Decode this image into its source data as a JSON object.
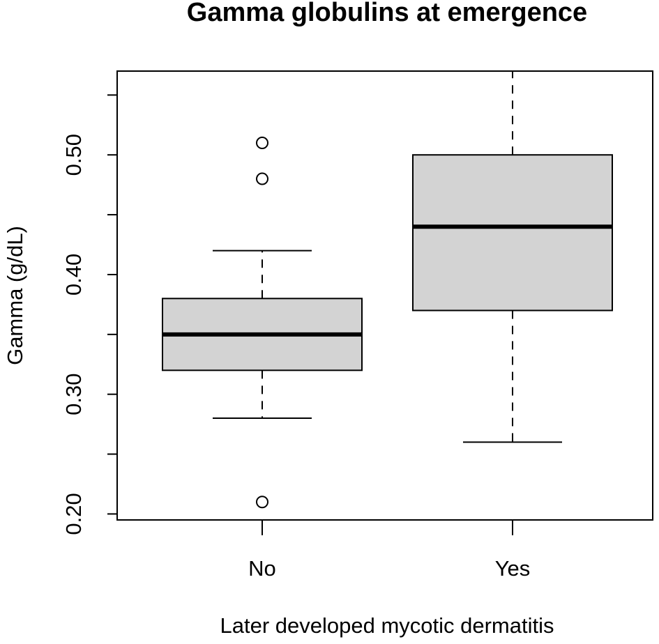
{
  "chart_data": {
    "type": "boxplot",
    "title": "Gamma globulins at emergence",
    "xlabel": "Later developed mycotic dermatitis",
    "ylabel": "Gamma (g/dL)",
    "ylim": [
      0.195,
      0.57
    ],
    "yticks": [
      0.2,
      0.25,
      0.3,
      0.35,
      0.4,
      0.45,
      0.5,
      0.55
    ],
    "yticklabels": [
      "0.20",
      "",
      "0.30",
      "",
      "0.40",
      "",
      "0.50",
      ""
    ],
    "categories": [
      "No",
      "Yes"
    ],
    "boxes": [
      {
        "category": "No",
        "whisker_low": 0.28,
        "q1": 0.32,
        "median": 0.35,
        "q3": 0.38,
        "whisker_high": 0.42,
        "outliers": [
          0.51,
          0.48,
          0.21
        ]
      },
      {
        "category": "Yes",
        "whisker_low": 0.26,
        "q1": 0.37,
        "median": 0.44,
        "q3": 0.5,
        "whisker_high": 0.57,
        "outliers": []
      }
    ],
    "grid": false,
    "colors": {
      "box_fill": "#d3d3d3",
      "stroke": "#000000"
    }
  }
}
